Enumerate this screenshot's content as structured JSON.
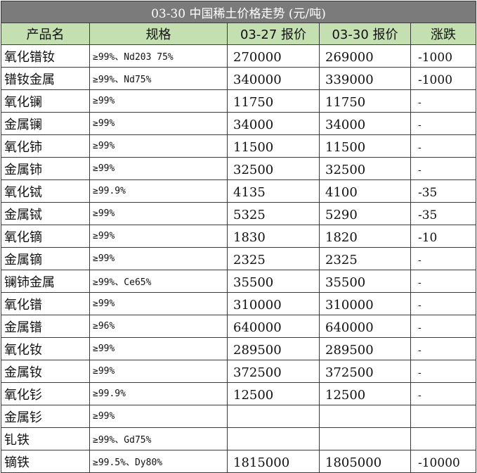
{
  "title": "03-30 中国稀土价格走势 (元/吨)",
  "headers": {
    "name": "产品名",
    "spec": "规格",
    "price_prev": "03-27 报价",
    "price_curr": "03-30 报价",
    "change": "涨跌"
  },
  "colors": {
    "title_bg": "#7b7b7b",
    "header_bg": "#c4dfb0",
    "change_down": "#119911",
    "change_flat": "#e23b3b"
  },
  "rows": [
    {
      "name": "氧化镨钕",
      "spec": "≥99%、Nd203 75%",
      "prev": "270000",
      "curr": "269000",
      "change": "-1000"
    },
    {
      "name": "镨钕金属",
      "spec": "≥99%、Nd75%",
      "prev": "340000",
      "curr": "339000",
      "change": "-1000"
    },
    {
      "name": "氧化镧",
      "spec": "≥99%",
      "prev": "11750",
      "curr": "11750",
      "change": "-"
    },
    {
      "name": "金属镧",
      "spec": "≥99%",
      "prev": "34000",
      "curr": "34000",
      "change": "-"
    },
    {
      "name": "氧化铈",
      "spec": "≥99%",
      "prev": "11500",
      "curr": "11500",
      "change": "-"
    },
    {
      "name": "金属铈",
      "spec": "≥99%",
      "prev": "32500",
      "curr": "32500",
      "change": "-"
    },
    {
      "name": "氧化铽",
      "spec": "≥99.9%",
      "prev": "4135",
      "curr": "4100",
      "change": "-35"
    },
    {
      "name": "金属铽",
      "spec": "≥99%",
      "prev": "5325",
      "curr": "5290",
      "change": "-35"
    },
    {
      "name": "氧化镝",
      "spec": "≥99%",
      "prev": "1830",
      "curr": "1820",
      "change": "-10"
    },
    {
      "name": "金属镝",
      "spec": "≥99%",
      "prev": "2325",
      "curr": "2325",
      "change": "-"
    },
    {
      "name": "镧铈金属",
      "spec": "≥99%、Ce65%",
      "prev": "35500",
      "curr": "35500",
      "change": "-"
    },
    {
      "name": "氧化镨",
      "spec": "≥99%",
      "prev": "310000",
      "curr": "310000",
      "change": "-"
    },
    {
      "name": "金属镨",
      "spec": "≥96%",
      "prev": "640000",
      "curr": "640000",
      "change": "-"
    },
    {
      "name": "氧化钕",
      "spec": "≥99%",
      "prev": "289500",
      "curr": "289500",
      "change": "-"
    },
    {
      "name": "金属钕",
      "spec": "≥99%",
      "prev": "372500",
      "curr": "372500",
      "change": "-"
    },
    {
      "name": "氧化钐",
      "spec": "≥99.9%",
      "prev": "12500",
      "curr": "12500",
      "change": "-"
    },
    {
      "name": "金属钐",
      "spec": "≥99%",
      "prev": "",
      "curr": "",
      "change": ""
    },
    {
      "name": "钆铁",
      "spec": "≥99%、Gd75%",
      "prev": "",
      "curr": "",
      "change": ""
    },
    {
      "name": "镝铁",
      "spec": "≥99.5%、Dy80%",
      "prev": "1815000",
      "curr": "1805000",
      "change": "-10000"
    }
  ]
}
